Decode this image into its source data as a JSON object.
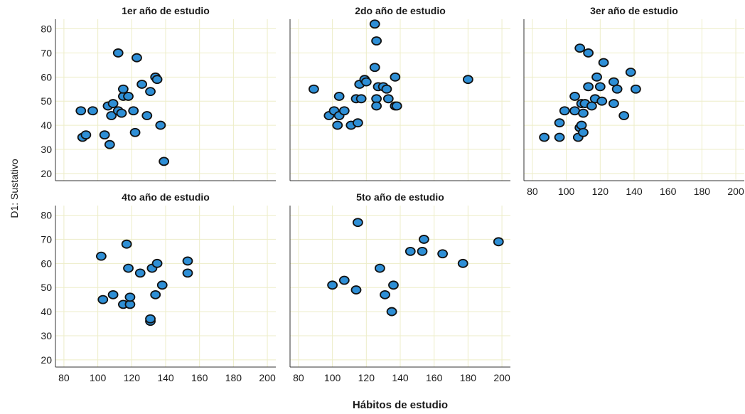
{
  "figure": {
    "xlabel": "Hábitos de estudio",
    "ylabel": "D1: Sustativo"
  },
  "colors": {
    "marker_fill": "#2e8fd6",
    "marker_stroke": "#111111",
    "grid": "#ededc8",
    "axis": "#333333"
  },
  "chart_data": [
    {
      "type": "scatter",
      "title": "1er año de estudio",
      "xlim": [
        75,
        205
      ],
      "ylim": [
        17,
        84
      ],
      "xticks": [
        80,
        100,
        120,
        140,
        160,
        180,
        200
      ],
      "yticks": [
        20,
        30,
        40,
        50,
        60,
        70,
        80
      ],
      "points": [
        {
          "x": 90,
          "y": 46
        },
        {
          "x": 97,
          "y": 46
        },
        {
          "x": 91,
          "y": 35
        },
        {
          "x": 93,
          "y": 36
        },
        {
          "x": 106,
          "y": 48
        },
        {
          "x": 109,
          "y": 49
        },
        {
          "x": 104,
          "y": 36
        },
        {
          "x": 108,
          "y": 44
        },
        {
          "x": 107,
          "y": 32
        },
        {
          "x": 112,
          "y": 46
        },
        {
          "x": 114,
          "y": 45
        },
        {
          "x": 115,
          "y": 52
        },
        {
          "x": 115,
          "y": 55
        },
        {
          "x": 118,
          "y": 52
        },
        {
          "x": 121,
          "y": 46
        },
        {
          "x": 112,
          "y": 70
        },
        {
          "x": 123,
          "y": 68
        },
        {
          "x": 126,
          "y": 57
        },
        {
          "x": 129,
          "y": 44
        },
        {
          "x": 131,
          "y": 54
        },
        {
          "x": 134,
          "y": 60
        },
        {
          "x": 135,
          "y": 59
        },
        {
          "x": 122,
          "y": 37
        },
        {
          "x": 137,
          "y": 40
        },
        {
          "x": 139,
          "y": 25
        }
      ]
    },
    {
      "type": "scatter",
      "title": "2do año de estudio",
      "xlim": [
        75,
        205
      ],
      "ylim": [
        17,
        84
      ],
      "xticks": [
        80,
        100,
        120,
        140,
        160,
        180,
        200
      ],
      "yticks": [
        20,
        30,
        40,
        50,
        60,
        70,
        80
      ],
      "points": [
        {
          "x": 89,
          "y": 55
        },
        {
          "x": 98,
          "y": 44
        },
        {
          "x": 101,
          "y": 46
        },
        {
          "x": 103,
          "y": 40
        },
        {
          "x": 104,
          "y": 52
        },
        {
          "x": 104,
          "y": 44
        },
        {
          "x": 107,
          "y": 46
        },
        {
          "x": 111,
          "y": 40
        },
        {
          "x": 114,
          "y": 51
        },
        {
          "x": 115,
          "y": 41
        },
        {
          "x": 116,
          "y": 57
        },
        {
          "x": 117,
          "y": 51
        },
        {
          "x": 119,
          "y": 59
        },
        {
          "x": 120,
          "y": 58
        },
        {
          "x": 125,
          "y": 64
        },
        {
          "x": 126,
          "y": 51
        },
        {
          "x": 126,
          "y": 48
        },
        {
          "x": 127,
          "y": 56
        },
        {
          "x": 130,
          "y": 56
        },
        {
          "x": 132,
          "y": 55
        },
        {
          "x": 133,
          "y": 51
        },
        {
          "x": 137,
          "y": 48
        },
        {
          "x": 138,
          "y": 48
        },
        {
          "x": 137,
          "y": 60
        },
        {
          "x": 125,
          "y": 82
        },
        {
          "x": 126,
          "y": 75
        },
        {
          "x": 180,
          "y": 59
        }
      ]
    },
    {
      "type": "scatter",
      "title": "3er año de estudio",
      "xlim": [
        75,
        205
      ],
      "ylim": [
        17,
        84
      ],
      "xticks": [
        80,
        100,
        120,
        140,
        160,
        180,
        200
      ],
      "yticks": [
        20,
        30,
        40,
        50,
        60,
        70,
        80
      ],
      "points": [
        {
          "x": 87,
          "y": 35
        },
        {
          "x": 96,
          "y": 35
        },
        {
          "x": 96,
          "y": 41
        },
        {
          "x": 99,
          "y": 46
        },
        {
          "x": 105,
          "y": 46
        },
        {
          "x": 105,
          "y": 52
        },
        {
          "x": 107,
          "y": 35
        },
        {
          "x": 108,
          "y": 39
        },
        {
          "x": 109,
          "y": 40
        },
        {
          "x": 110,
          "y": 37
        },
        {
          "x": 109,
          "y": 49
        },
        {
          "x": 110,
          "y": 45
        },
        {
          "x": 111,
          "y": 49
        },
        {
          "x": 113,
          "y": 56
        },
        {
          "x": 115,
          "y": 48
        },
        {
          "x": 117,
          "y": 51
        },
        {
          "x": 118,
          "y": 60
        },
        {
          "x": 120,
          "y": 56
        },
        {
          "x": 121,
          "y": 50
        },
        {
          "x": 128,
          "y": 49
        },
        {
          "x": 128,
          "y": 58
        },
        {
          "x": 130,
          "y": 55
        },
        {
          "x": 134,
          "y": 44
        },
        {
          "x": 138,
          "y": 62
        },
        {
          "x": 141,
          "y": 55
        },
        {
          "x": 108,
          "y": 72
        },
        {
          "x": 113,
          "y": 70
        },
        {
          "x": 122,
          "y": 66
        }
      ]
    },
    {
      "type": "scatter",
      "title": "4to año de estudio",
      "xlim": [
        75,
        205
      ],
      "ylim": [
        17,
        84
      ],
      "xticks": [
        80,
        100,
        120,
        140,
        160,
        180,
        200
      ],
      "yticks": [
        20,
        30,
        40,
        50,
        60,
        70,
        80
      ],
      "points": [
        {
          "x": 102,
          "y": 63
        },
        {
          "x": 103,
          "y": 45
        },
        {
          "x": 109,
          "y": 47
        },
        {
          "x": 115,
          "y": 43
        },
        {
          "x": 117,
          "y": 68
        },
        {
          "x": 118,
          "y": 58
        },
        {
          "x": 119,
          "y": 43
        },
        {
          "x": 119,
          "y": 46
        },
        {
          "x": 125,
          "y": 56
        },
        {
          "x": 131,
          "y": 36
        },
        {
          "x": 131,
          "y": 37
        },
        {
          "x": 132,
          "y": 58
        },
        {
          "x": 134,
          "y": 47
        },
        {
          "x": 135,
          "y": 60
        },
        {
          "x": 138,
          "y": 51
        },
        {
          "x": 153,
          "y": 61
        },
        {
          "x": 153,
          "y": 56
        }
      ]
    },
    {
      "type": "scatter",
      "title": "5to año de estudio",
      "xlim": [
        75,
        205
      ],
      "ylim": [
        17,
        84
      ],
      "xticks": [
        80,
        100,
        120,
        140,
        160,
        180,
        200
      ],
      "yticks": [
        20,
        30,
        40,
        50,
        60,
        70,
        80
      ],
      "points": [
        {
          "x": 115,
          "y": 77
        },
        {
          "x": 100,
          "y": 51
        },
        {
          "x": 107,
          "y": 53
        },
        {
          "x": 114,
          "y": 49
        },
        {
          "x": 128,
          "y": 58
        },
        {
          "x": 131,
          "y": 47
        },
        {
          "x": 136,
          "y": 51
        },
        {
          "x": 135,
          "y": 40
        },
        {
          "x": 146,
          "y": 65
        },
        {
          "x": 153,
          "y": 65
        },
        {
          "x": 154,
          "y": 70
        },
        {
          "x": 165,
          "y": 64
        },
        {
          "x": 177,
          "y": 60
        },
        {
          "x": 198,
          "y": 69
        }
      ]
    }
  ]
}
